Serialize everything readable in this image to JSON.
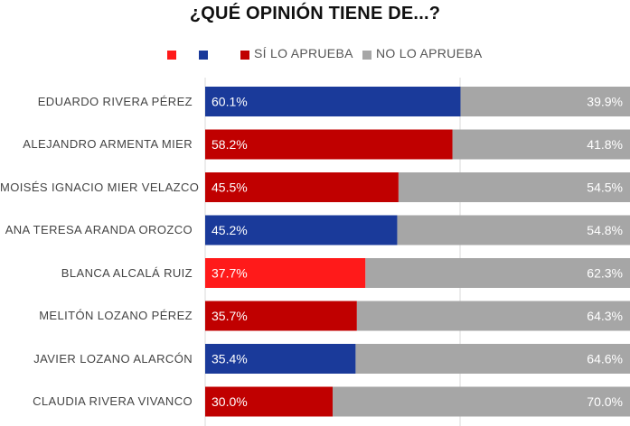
{
  "chart_data": {
    "type": "bar",
    "orientation": "horizontal",
    "stacked": true,
    "title": "¿QUÉ OPINIÓN TIENE DE...?",
    "legend": [
      {
        "label": "",
        "color": "#ff1a1a"
      },
      {
        "label": "",
        "color": "#1a3a9a"
      },
      {
        "label": "SÍ LO APRUEBA",
        "color": "#c00000"
      },
      {
        "label": "NO LO APRUEBA",
        "color": "#a6a6a6"
      }
    ],
    "categories": [
      "EDUARDO RIVERA PÉREZ",
      "ALEJANDRO ARMENTA MIER",
      "MOISÉS IGNACIO MIER VELAZCO",
      "ANA TERESA ARANDA OROZCO",
      "BLANCA ALCALÁ RUIZ",
      "MELITÓN LOZANO PÉREZ",
      "JAVIER LOZANO ALARCÓN",
      "CLAUDIA RIVERA VIVANCO"
    ],
    "series": [
      {
        "name": "SÍ LO APRUEBA",
        "values": [
          60.1,
          58.2,
          45.5,
          45.2,
          37.7,
          35.7,
          35.4,
          30.0
        ],
        "labels": [
          "60.1%",
          "58.2%",
          "45.5%",
          "45.2%",
          "37.7%",
          "35.7%",
          "35.4%",
          "30.0%"
        ],
        "colors": [
          "#1a3a9a",
          "#c00000",
          "#c00000",
          "#1a3a9a",
          "#ff1a1a",
          "#c00000",
          "#1a3a9a",
          "#c00000"
        ]
      },
      {
        "name": "NO LO APRUEBA",
        "values": [
          39.9,
          41.8,
          54.5,
          54.8,
          62.3,
          64.3,
          64.6,
          70.0
        ],
        "labels": [
          "39.9%",
          "41.8%",
          "54.5%",
          "54.8%",
          "62.3%",
          "64.3%",
          "64.6%",
          "70.0%"
        ],
        "color": "#a6a6a6"
      }
    ],
    "xlim": [
      0,
      100
    ],
    "grid": true
  }
}
